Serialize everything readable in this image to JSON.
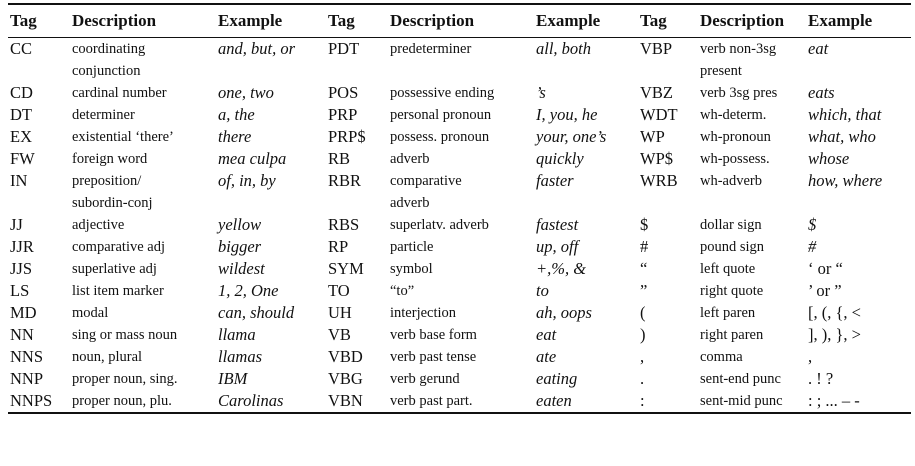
{
  "headers": [
    "Tag",
    "Description",
    "Example",
    "Tag",
    "Description",
    "Example",
    "Tag",
    "Description",
    "Example"
  ],
  "rows": [
    {
      "c": [
        {
          "tag": "CC",
          "desc": [
            "coordinating",
            "conjunction"
          ],
          "ex": "and, but, or"
        },
        {
          "tag": "PDT",
          "desc": [
            "predeterminer"
          ],
          "ex": "all, both"
        },
        {
          "tag": "VBP",
          "desc": [
            "verb non-3sg",
            "present"
          ],
          "ex": "eat"
        }
      ]
    },
    {
      "c": [
        {
          "tag": "CD",
          "desc": [
            "cardinal number"
          ],
          "ex": "one, two"
        },
        {
          "tag": "POS",
          "desc": [
            "possessive ending"
          ],
          "ex": "’s"
        },
        {
          "tag": "VBZ",
          "desc": [
            "verb 3sg pres"
          ],
          "ex": "eats"
        }
      ]
    },
    {
      "c": [
        {
          "tag": "DT",
          "desc": [
            "determiner"
          ],
          "ex": "a, the"
        },
        {
          "tag": "PRP",
          "desc": [
            "personal pronoun"
          ],
          "ex": "I, you, he"
        },
        {
          "tag": "WDT",
          "desc": [
            "wh-determ."
          ],
          "ex": "which, that"
        }
      ]
    },
    {
      "c": [
        {
          "tag": "EX",
          "desc": [
            "existential ‘there’"
          ],
          "ex": "there"
        },
        {
          "tag": "PRP$",
          "desc": [
            "possess. pronoun"
          ],
          "ex": "your, one’s"
        },
        {
          "tag": "WP",
          "desc": [
            "wh-pronoun"
          ],
          "ex": "what, who"
        }
      ]
    },
    {
      "c": [
        {
          "tag": "FW",
          "desc": [
            "foreign word"
          ],
          "ex": "mea culpa"
        },
        {
          "tag": "RB",
          "desc": [
            "adverb"
          ],
          "ex": "quickly"
        },
        {
          "tag": "WP$",
          "desc": [
            "wh-possess."
          ],
          "ex": "whose"
        }
      ]
    },
    {
      "c": [
        {
          "tag": "IN",
          "desc": [
            "preposition/",
            "subordin-conj"
          ],
          "ex": "of, in, by"
        },
        {
          "tag": "RBR",
          "desc": [
            "comparative",
            "adverb"
          ],
          "ex": "faster"
        },
        {
          "tag": "WRB",
          "desc": [
            "wh-adverb"
          ],
          "ex": "how, where"
        }
      ]
    },
    {
      "c": [
        {
          "tag": "JJ",
          "desc": [
            "adjective"
          ],
          "ex": "yellow"
        },
        {
          "tag": "RBS",
          "desc": [
            "superlatv. adverb"
          ],
          "ex": "fastest"
        },
        {
          "tag": "$",
          "desc": [
            "dollar sign"
          ],
          "ex": "$"
        }
      ]
    },
    {
      "c": [
        {
          "tag": "JJR",
          "desc": [
            "comparative adj"
          ],
          "ex": "bigger"
        },
        {
          "tag": "RP",
          "desc": [
            "particle"
          ],
          "ex": "up, off"
        },
        {
          "tag": "#",
          "desc": [
            "pound sign"
          ],
          "ex": "#"
        }
      ]
    },
    {
      "c": [
        {
          "tag": "JJS",
          "desc": [
            "superlative adj"
          ],
          "ex": "wildest"
        },
        {
          "tag": "SYM",
          "desc": [
            "symbol"
          ],
          "ex": "+,%, &"
        },
        {
          "tag": "“",
          "desc": [
            "left quote"
          ],
          "ex": "‘ or “",
          "plain": true
        }
      ]
    },
    {
      "c": [
        {
          "tag": "LS",
          "desc": [
            "list item marker"
          ],
          "ex": "1, 2, One"
        },
        {
          "tag": "TO",
          "desc": [
            "“to”"
          ],
          "ex": "to"
        },
        {
          "tag": "”",
          "desc": [
            "right quote"
          ],
          "ex": "’ or ”",
          "plain": true
        }
      ]
    },
    {
      "c": [
        {
          "tag": "MD",
          "desc": [
            "modal"
          ],
          "ex": "can, should"
        },
        {
          "tag": "UH",
          "desc": [
            "interjection"
          ],
          "ex": "ah, oops"
        },
        {
          "tag": "(",
          "desc": [
            "left paren"
          ],
          "ex": "[, (, {, <",
          "plain": true
        }
      ]
    },
    {
      "c": [
        {
          "tag": "NN",
          "desc": [
            "sing or mass noun"
          ],
          "ex": "llama"
        },
        {
          "tag": "VB",
          "desc": [
            "verb base form"
          ],
          "ex": "eat"
        },
        {
          "tag": ")",
          "desc": [
            "right paren"
          ],
          "ex": "], ), }, >",
          "plain": true
        }
      ]
    },
    {
      "c": [
        {
          "tag": "NNS",
          "desc": [
            "noun, plural"
          ],
          "ex": "llamas"
        },
        {
          "tag": "VBD",
          "desc": [
            "verb past tense"
          ],
          "ex": "ate"
        },
        {
          "tag": ",",
          "desc": [
            "comma"
          ],
          "ex": ",",
          "plain": true
        }
      ]
    },
    {
      "c": [
        {
          "tag": "NNP",
          "desc": [
            "proper noun, sing."
          ],
          "ex": "IBM"
        },
        {
          "tag": "VBG",
          "desc": [
            "verb gerund"
          ],
          "ex": "eating"
        },
        {
          "tag": ".",
          "desc": [
            "sent-end punc"
          ],
          "ex": ". ! ?",
          "plain": true
        }
      ]
    },
    {
      "c": [
        {
          "tag": "NNPS",
          "desc": [
            "proper noun, plu."
          ],
          "ex": "Carolinas"
        },
        {
          "tag": "VBN",
          "desc": [
            "verb past part."
          ],
          "ex": "eaten"
        },
        {
          "tag": ":",
          "desc": [
            ":",
            "sent-mid punc"
          ],
          "ex": ": ; ... – -",
          "plain": true
        }
      ]
    }
  ]
}
